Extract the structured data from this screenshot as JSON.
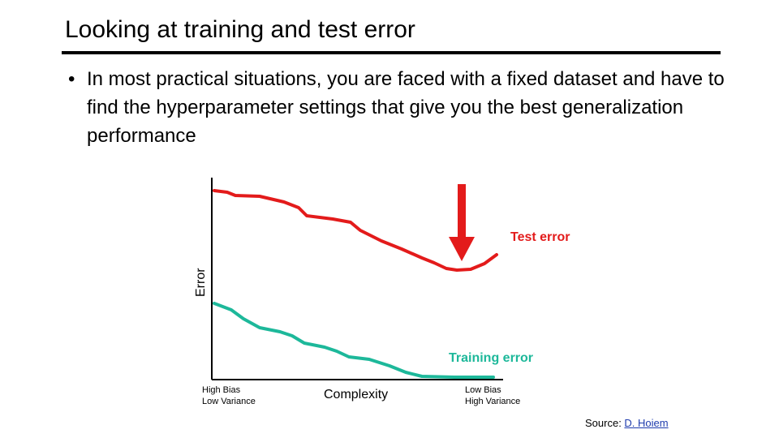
{
  "slide": {
    "title": "Looking at training and test error",
    "bullet_marker": "•",
    "bullet_text": "In most practical situations, you are faced with a fixed dataset and have to find the hyperparameter settings that give you the best generalization performance"
  },
  "diagram": {
    "y_axis_label": "Error",
    "x_axis_label": "Complexity",
    "left_caption_line1": "High Bias",
    "left_caption_line2": "Low Variance",
    "right_caption_line1": "Low Bias",
    "right_caption_line2": "High Variance",
    "test_curve_label": "Test error",
    "training_curve_label": "Training error",
    "colors": {
      "test": "#e31b1b",
      "training": "#1db89a",
      "arrow": "#e31b1b"
    },
    "arrow_icon": "down-arrow-icon"
  },
  "footer": {
    "source_prefix": "Source: ",
    "source_link_text": "D. Hoiem"
  }
}
